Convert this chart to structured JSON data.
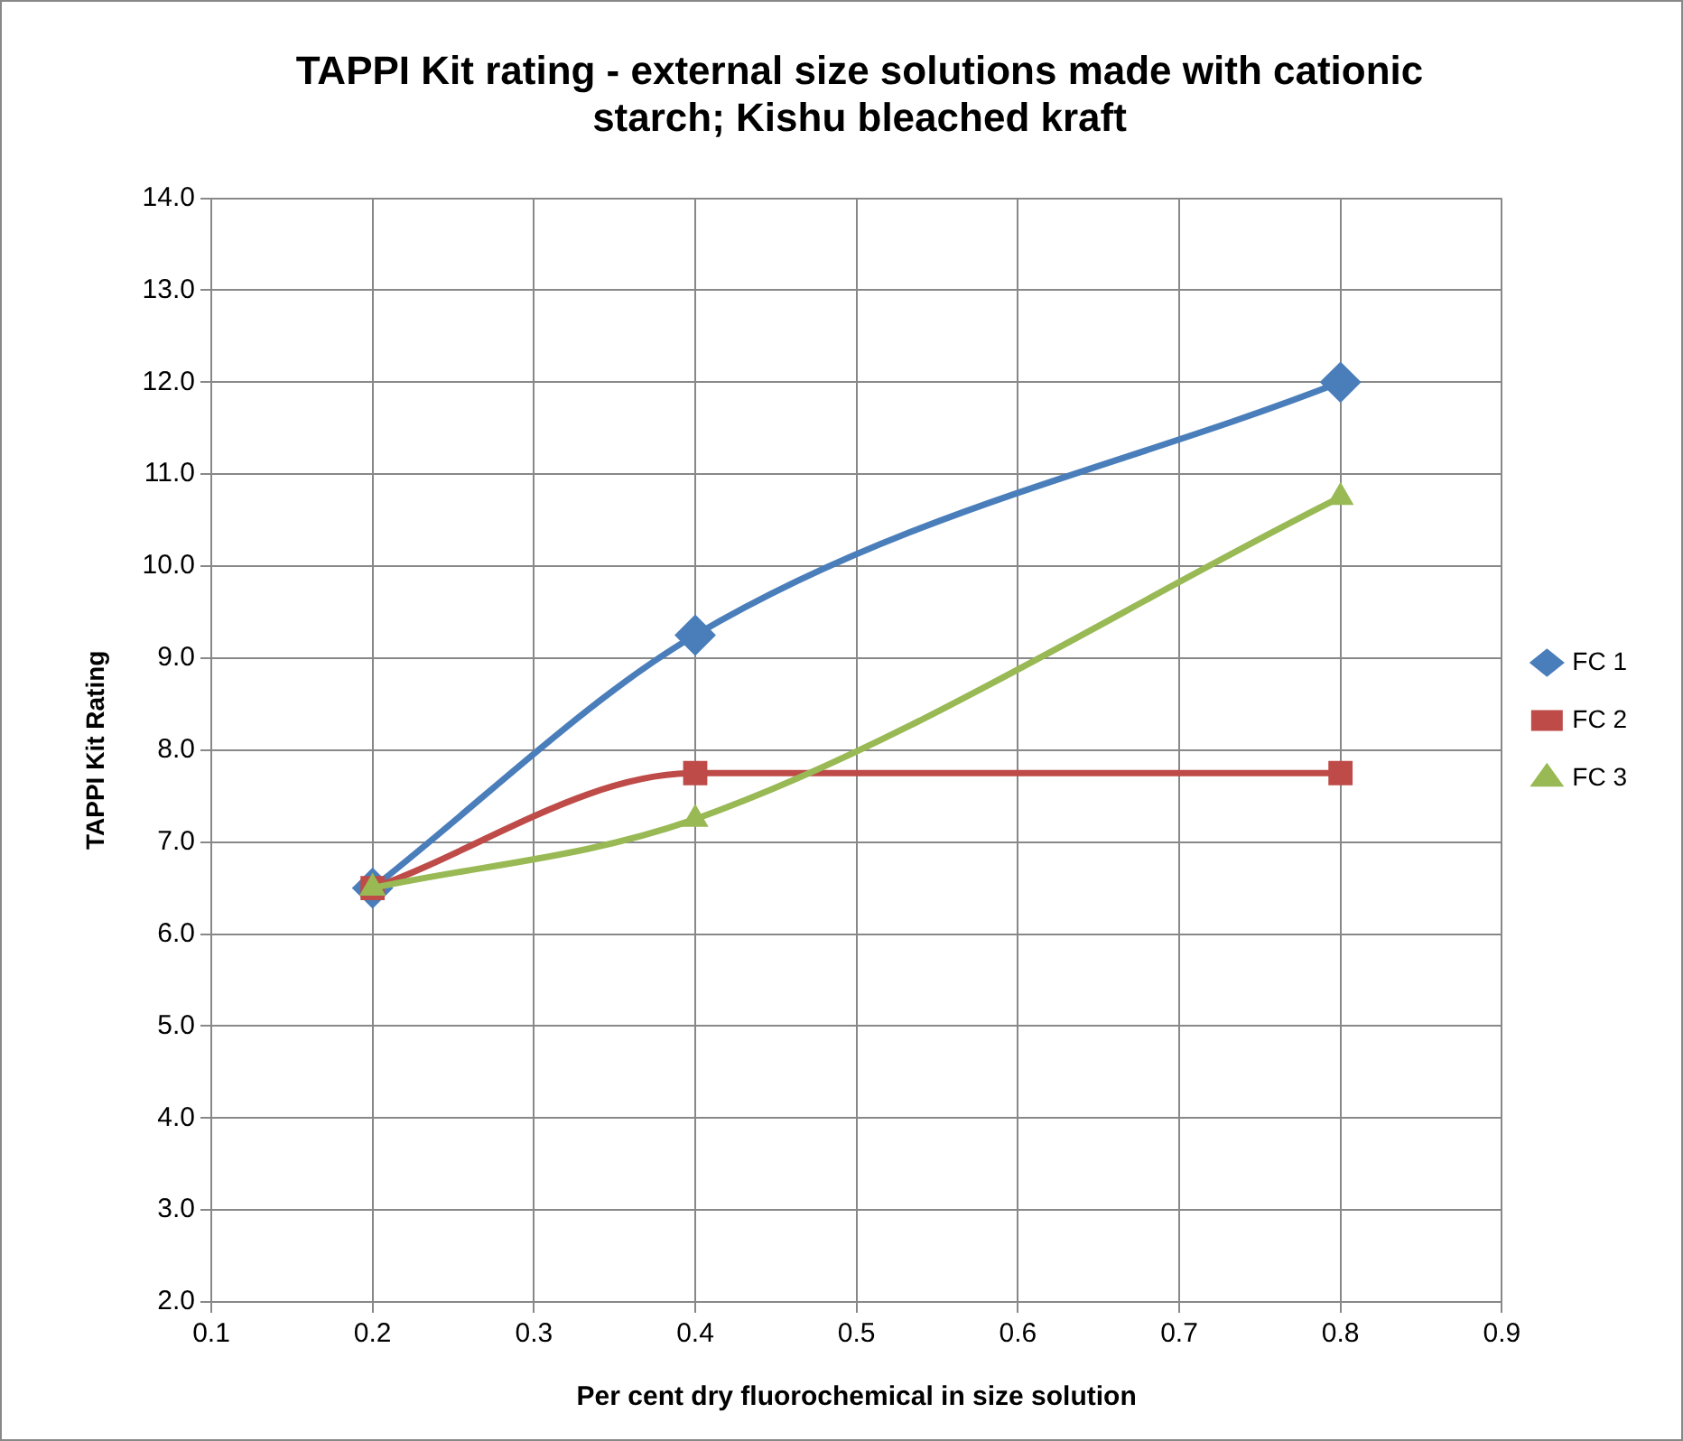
{
  "chart_data": {
    "type": "line",
    "title": "TAPPI Kit rating - external size solutions made with cationic starch; Kishu bleached kraft",
    "xlabel": "Per cent dry fluorochemical in size solution",
    "ylabel": "TAPPI Kit Rating",
    "x": [
      0.2,
      0.4,
      0.8
    ],
    "series": [
      {
        "name": "FC 1",
        "color": "#4a7ebb",
        "marker": "diamond",
        "values": [
          6.5,
          9.25,
          12.0
        ]
      },
      {
        "name": "FC 2",
        "color": "#be4b48",
        "marker": "square",
        "values": [
          6.5,
          7.75,
          7.75
        ]
      },
      {
        "name": "FC 3",
        "color": "#98b954",
        "marker": "triangle",
        "values": [
          6.5,
          7.25,
          10.75
        ]
      }
    ],
    "xlim": [
      0.1,
      0.9
    ],
    "xticks": [
      0.1,
      0.2,
      0.3,
      0.4,
      0.5,
      0.6,
      0.7,
      0.8,
      0.9
    ],
    "ylim": [
      2,
      14
    ],
    "yticks": [
      {
        "value": 2,
        "label": "2.0"
      },
      {
        "value": 3,
        "label": "3.0"
      },
      {
        "value": 4,
        "label": "4.0"
      },
      {
        "value": 5,
        "label": "5.0"
      },
      {
        "value": 6,
        "label": "6.0"
      },
      {
        "value": 7,
        "label": "7.0"
      },
      {
        "value": 8,
        "label": "8.0"
      },
      {
        "value": 9,
        "label": "9.0"
      },
      {
        "value": 10,
        "label": "10.0"
      },
      {
        "value": 11,
        "label": "11.0"
      },
      {
        "value": 12,
        "label": "12.0"
      },
      {
        "value": 13,
        "label": "13.0"
      },
      {
        "value": 14,
        "label": "14.0"
      }
    ],
    "grid": true,
    "legend": "right",
    "line_style": "solid"
  }
}
